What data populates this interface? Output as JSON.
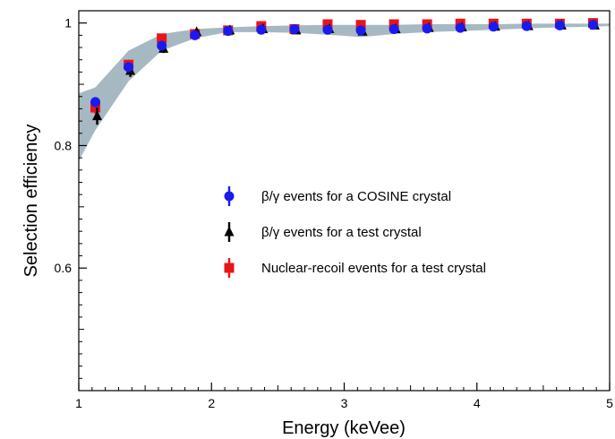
{
  "chart_data": {
    "type": "scatter",
    "xlabel": "Energy (keVee)",
    "ylabel": "Selection efficiency",
    "xlim": [
      1,
      5
    ],
    "ylim": [
      0.4,
      1.02
    ],
    "xticks": [
      1,
      2,
      3,
      4,
      5
    ],
    "yticks": [
      0.6,
      0.8,
      1
    ],
    "tick_labels_x": [
      "1",
      "2",
      "3",
      "4",
      "5"
    ],
    "tick_labels_y": [
      "0.6",
      "0.8",
      "1"
    ],
    "grid": false,
    "legend_position": "center",
    "band": {
      "color": "#a6b9c3",
      "x": [
        1.0,
        1.125,
        1.375,
        1.625,
        1.875,
        2.125,
        2.375,
        2.625,
        2.875,
        3.125,
        3.375,
        3.625,
        3.875,
        4.125,
        4.375,
        4.625,
        4.875,
        5.0
      ],
      "upper": [
        0.885,
        0.895,
        0.955,
        0.982,
        0.99,
        0.993,
        0.995,
        0.996,
        0.997,
        0.997,
        0.997,
        0.998,
        0.998,
        0.998,
        0.999,
        0.999,
        0.999,
        0.999
      ],
      "lower": [
        0.775,
        0.825,
        0.905,
        0.955,
        0.975,
        0.985,
        0.985,
        0.984,
        0.981,
        0.977,
        0.982,
        0.985,
        0.987,
        0.989,
        0.991,
        0.993,
        0.994,
        0.995
      ]
    },
    "series": [
      {
        "name": "Nuclear-recoil events for a test crystal",
        "marker": "square",
        "color": "#e8141b",
        "x": [
          1.125,
          1.375,
          1.625,
          1.875,
          2.125,
          2.375,
          2.625,
          2.875,
          3.125,
          3.375,
          3.625,
          3.875,
          4.125,
          4.375,
          4.625,
          4.875
        ],
        "y": [
          0.862,
          0.932,
          0.975,
          0.982,
          0.988,
          0.995,
          0.99,
          0.998,
          0.997,
          0.998,
          0.998,
          0.999,
          0.999,
          0.999,
          0.999,
          1.0
        ],
        "err": [
          0.01,
          0.008,
          0.005,
          0.004,
          0.003,
          0.003,
          0.003,
          0.003,
          0.003,
          0.003,
          0.003,
          0.003,
          0.003,
          0.003,
          0.003,
          0.003
        ]
      },
      {
        "name": "β/γ events for a test crystal",
        "marker": "triangle",
        "color": "#000000",
        "x": [
          1.125,
          1.375,
          1.625,
          1.875,
          2.125,
          2.375,
          2.625,
          2.875,
          3.125,
          3.375,
          3.625,
          3.875,
          4.125,
          4.375,
          4.625,
          4.875
        ],
        "y": [
          0.848,
          0.922,
          0.958,
          0.985,
          0.988,
          0.99,
          0.988,
          0.99,
          0.986,
          0.99,
          0.992,
          0.993,
          0.994,
          0.995,
          0.996,
          0.996
        ],
        "err": [
          0.014,
          0.01,
          0.007,
          0.006,
          0.005,
          0.004,
          0.004,
          0.004,
          0.004,
          0.004,
          0.004,
          0.004,
          0.004,
          0.004,
          0.004,
          0.004
        ]
      },
      {
        "name": "β/γ events for a COSINE crystal",
        "marker": "circle",
        "color": "#1a1af0",
        "x": [
          1.125,
          1.375,
          1.625,
          1.875,
          2.125,
          2.375,
          2.625,
          2.875,
          3.125,
          3.375,
          3.625,
          3.875,
          4.125,
          4.375,
          4.625,
          4.875
        ],
        "y": [
          0.871,
          0.928,
          0.963,
          0.98,
          0.987,
          0.989,
          0.99,
          0.989,
          0.988,
          0.99,
          0.991,
          0.992,
          0.994,
          0.995,
          0.996,
          0.997
        ],
        "err": [
          0.008,
          0.006,
          0.004,
          0.003,
          0.003,
          0.003,
          0.003,
          0.003,
          0.003,
          0.003,
          0.003,
          0.003,
          0.003,
          0.003,
          0.003,
          0.003
        ]
      }
    ],
    "legend": [
      {
        "label": "β/γ events for a COSINE crystal",
        "marker": "circle",
        "color": "#1a1af0"
      },
      {
        "label": "β/γ events for a test crystal",
        "marker": "triangle",
        "color": "#000000"
      },
      {
        "label": "Nuclear-recoil events for a test crystal",
        "marker": "square",
        "color": "#e8141b"
      }
    ]
  }
}
